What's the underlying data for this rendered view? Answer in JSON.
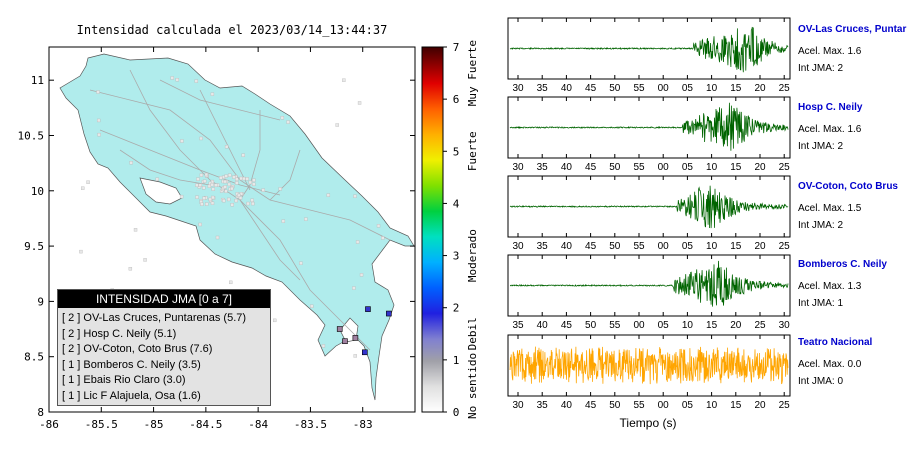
{
  "title": "Intensidad calculada el 2023/03/14_13:44:37",
  "map": {
    "x_ticks": [
      "-86",
      "-85.5",
      "-85",
      "-84.5",
      "-84",
      "-83.5",
      "-83"
    ],
    "y_ticks": [
      "11",
      "10.5",
      "10",
      "9.5",
      "9",
      "8.5",
      "8"
    ],
    "xlim": [
      -86,
      -82.5
    ],
    "ylim": [
      8,
      11.3
    ]
  },
  "colorbar": {
    "ticks": [
      "0",
      "1",
      "2",
      "3",
      "4",
      "5",
      "6",
      "7"
    ],
    "labels": [
      "No sentido",
      "Debil",
      "Moderado",
      "Fuerte",
      "Muy Fuerte"
    ]
  },
  "legend": {
    "title": "INTENSIDAD JMA [0 a 7]",
    "items": [
      "[ 2 ]  OV-Las Cruces, Puntarenas (5.7)",
      "[ 2 ]  Hosp C. Neily (5.1)",
      "[ 2 ]  OV-Coton, Coto Brus (7.6)",
      "[ 1 ]  Bomberos C. Neily (3.5)",
      "[ 1 ]  Ebais Rio Claro (3.0)",
      "[ 1 ]  Lic F Alajuela, Osa (1.6)"
    ]
  },
  "seismograms": {
    "x_label": "Tiempo (s)",
    "stations": [
      {
        "name": "OV-Las Cruces, Puntar",
        "accel": "Acel. Max. 1.6",
        "jma": "Int JMA: 2",
        "color": "#006400",
        "ticks": [
          "30",
          "35",
          "40",
          "45",
          "50",
          "55",
          "00",
          "05",
          "10",
          "15",
          "20",
          "25"
        ]
      },
      {
        "name": "Hosp C. Neily",
        "accel": "Acel. Max. 1.6",
        "jma": "Int JMA: 2",
        "color": "#006400",
        "ticks": [
          "30",
          "35",
          "40",
          "45",
          "50",
          "55",
          "00",
          "05",
          "10",
          "15",
          "20",
          "25"
        ]
      },
      {
        "name": "OV-Coton, Coto Brus",
        "accel": "Acel. Max. 1.5",
        "jma": "Int JMA: 2",
        "color": "#006400",
        "ticks": [
          "30",
          "35",
          "40",
          "45",
          "50",
          "55",
          "00",
          "05",
          "10",
          "15",
          "20",
          "25"
        ]
      },
      {
        "name": "Bomberos C. Neily",
        "accel": "Acel. Max. 1.3",
        "jma": "Int JMA: 1",
        "color": "#006400",
        "ticks": [
          "35",
          "40",
          "45",
          "50",
          "55",
          "00",
          "05",
          "10",
          "15",
          "20",
          "25",
          "30"
        ]
      },
      {
        "name": "Teatro Nacional",
        "accel": "Acel. Max. 0.0",
        "jma": "Int JMA: 0",
        "color": "#ffa500",
        "ticks": [
          "30",
          "35",
          "40",
          "45",
          "50",
          "55",
          "00",
          "05",
          "10",
          "15",
          "20",
          "25"
        ]
      }
    ]
  },
  "chart_data": [
    {
      "type": "scatter",
      "title": "Intensidad calculada el 2023/03/14_13:44:37",
      "xlabel": "",
      "ylabel": "",
      "xlim": [
        -86,
        -82.5
      ],
      "ylim": [
        8,
        11.3
      ],
      "points": [
        {
          "x": -82.95,
          "y": 8.93,
          "intensity": 2
        },
        {
          "x": -82.75,
          "y": 8.89,
          "intensity": 2
        },
        {
          "x": -82.98,
          "y": 8.54,
          "intensity": 2
        },
        {
          "x": -83.07,
          "y": 8.67,
          "intensity": 1
        },
        {
          "x": -83.22,
          "y": 8.75,
          "intensity": 1
        },
        {
          "x": -83.17,
          "y": 8.64,
          "intensity": 1
        }
      ],
      "colorbar_range": [
        0,
        7
      ]
    }
  ]
}
